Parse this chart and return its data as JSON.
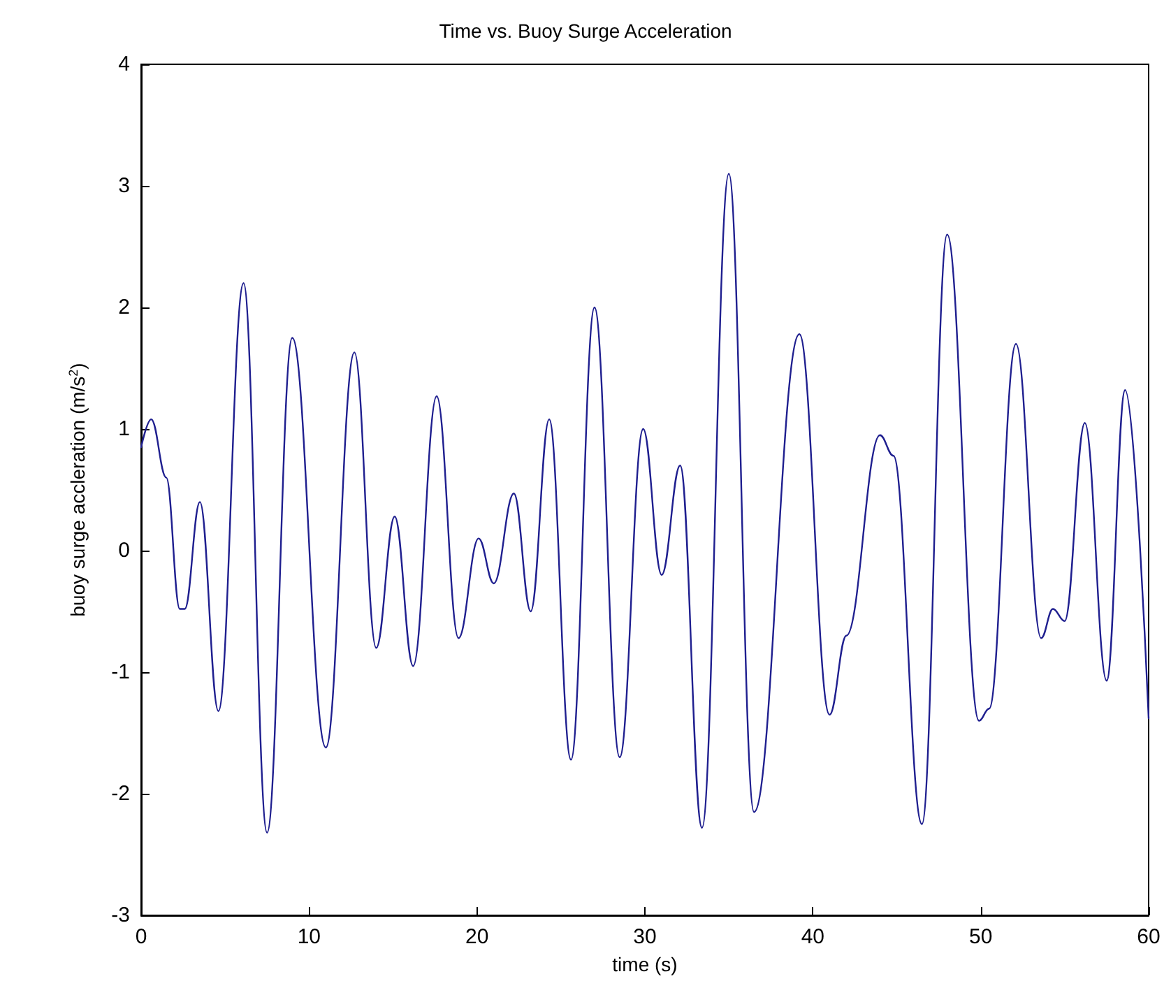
{
  "chart_data": {
    "type": "line",
    "title": "Time vs. Buoy Surge Acceleration",
    "xlabel": "time (s)",
    "ylabel": "buoy surge accleration (m/s$^{2}$)",
    "xlim": [
      0,
      60
    ],
    "xticks": [
      0,
      10,
      20,
      30,
      40,
      50,
      60
    ],
    "ylim": [
      -3,
      4
    ],
    "yticks": [
      -3,
      -2,
      -1,
      0,
      1,
      2,
      3,
      4
    ],
    "grid": false,
    "line_style": "solid",
    "series": [
      {
        "color": "#1f1f8f",
        "x": [
          0,
          0.6,
          1.5,
          2.3,
          2.6,
          3.5,
          4.6,
          6.1,
          7.5,
          9.0,
          11.0,
          12.7,
          14.0,
          15.1,
          16.2,
          17.6,
          18.9,
          20.1,
          21.0,
          22.2,
          23.2,
          24.3,
          25.6,
          27.0,
          28.5,
          29.9,
          31.0,
          32.1,
          33.4,
          35.0,
          36.5,
          39.2,
          41.0,
          42.0,
          44.0,
          44.8,
          46.5,
          48.0,
          49.9,
          50.5,
          52.1,
          53.6,
          54.3,
          55.0,
          56.2,
          57.5,
          58.6,
          60
        ],
        "values": [
          0.85,
          1.08,
          0.6,
          -0.48,
          -0.48,
          0.4,
          -1.32,
          2.2,
          -2.32,
          1.75,
          -1.62,
          1.63,
          -0.8,
          0.28,
          -0.95,
          1.27,
          -0.72,
          0.1,
          -0.27,
          0.47,
          -0.5,
          1.08,
          -1.72,
          2.0,
          -1.7,
          1.0,
          -0.2,
          0.7,
          -2.28,
          3.1,
          -2.15,
          1.78,
          -1.35,
          -0.7,
          0.95,
          0.78,
          -2.25,
          2.6,
          -1.4,
          -1.3,
          1.7,
          -0.72,
          -0.48,
          -0.58,
          1.05,
          -1.07,
          1.32,
          -1.38
        ]
      }
    ]
  }
}
